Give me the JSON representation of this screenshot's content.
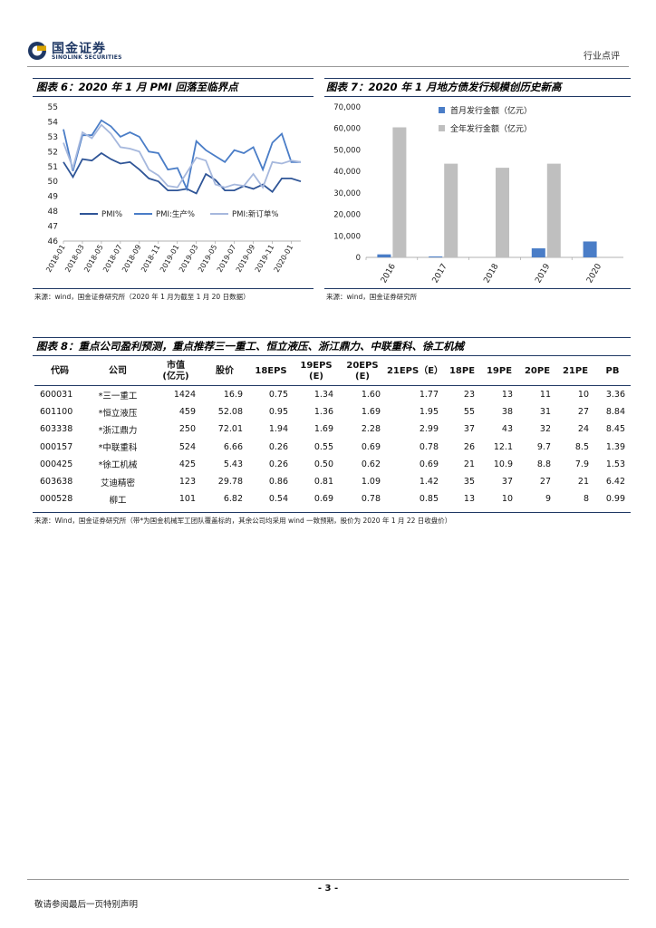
{
  "header": {
    "logo_cn": "国金证券",
    "logo_en": "SINOLINK SECURITIES",
    "section": "行业点评"
  },
  "fig6": {
    "title": "图表 6：2020 年 1 月 PMI 回落至临界点",
    "source": "来源：wind，国金证券研究所（2020 年 1 月为截至 1 月 20 日数据）"
  },
  "fig7": {
    "title": "图表 7：2020 年 1 月地方债发行规模创历史新高",
    "source": "来源：wind，国金证券研究所"
  },
  "fig8": {
    "title": "图表 8：重点公司盈利预测，重点推荐三一重工、恒立液压、浙江鼎力、中联重科、徐工机械",
    "source": "来源：Wind，国金证券研究所（带*为国金机械军工团队覆盖标的，其余公司均采用 wind 一致预期，股价为 2020 年 1 月 22 日收盘价）"
  },
  "chart_data": [
    {
      "type": "line",
      "title": "图表 6：2020 年 1 月 PMI 回落至临界点",
      "ylim": [
        46,
        55
      ],
      "yticks": [
        "55",
        "54",
        "53",
        "52",
        "51",
        "50",
        "49",
        "48",
        "47",
        "46"
      ],
      "xtick_labels": [
        "2018-01",
        "2018-03",
        "2018-05",
        "2018-07",
        "2018-09",
        "2018-11",
        "2019-01",
        "2019-03",
        "2019-05",
        "2019-07",
        "2019-09",
        "2019-11",
        "2020-01"
      ],
      "legend": "bottom",
      "series": [
        {
          "name": "PMI%",
          "color": "#2f5597",
          "values": [
            51.3,
            50.3,
            51.5,
            51.4,
            51.9,
            51.5,
            51.2,
            51.3,
            50.8,
            50.2,
            50.0,
            49.4,
            49.4,
            49.5,
            49.2,
            50.5,
            50.1,
            49.4,
            49.4,
            49.7,
            49.5,
            49.8,
            49.3,
            50.2,
            50.2,
            50.0
          ]
        },
        {
          "name": "PMI:生产%",
          "color": "#4a7dc7",
          "values": [
            53.5,
            50.7,
            53.1,
            53.1,
            54.1,
            53.7,
            53.0,
            53.3,
            53.0,
            52.0,
            51.9,
            50.8,
            50.9,
            49.5,
            52.7,
            52.1,
            51.7,
            51.3,
            52.1,
            51.9,
            52.3,
            50.8,
            52.6,
            53.2,
            51.3,
            51.3
          ]
        },
        {
          "name": "PMI:新订单%",
          "color": "#a6b8dd",
          "values": [
            52.6,
            50.9,
            53.3,
            52.9,
            53.8,
            53.2,
            52.3,
            52.2,
            52.0,
            50.8,
            50.4,
            49.7,
            49.6,
            50.6,
            51.6,
            51.4,
            49.8,
            49.6,
            49.8,
            49.7,
            50.5,
            49.6,
            51.3,
            51.2,
            51.4,
            51.3
          ]
        }
      ]
    },
    {
      "type": "bar",
      "title": "图表 7：2020 年 1 月地方债发行规模创历史新高",
      "categories": [
        "2016",
        "2017",
        "2018",
        "2019",
        "2020"
      ],
      "ylim": [
        0,
        70000
      ],
      "yticks": [
        "70,000",
        "60,000",
        "50,000",
        "40,000",
        "30,000",
        "20,000",
        "10,000",
        "0"
      ],
      "legend": "top-right",
      "series": [
        {
          "name": "首月发行金额（亿元）",
          "color": "#4a7dc7",
          "values": [
            1400,
            200,
            0,
            4200,
            7400
          ]
        },
        {
          "name": "全年发行金额（亿元）",
          "color": "#bfbfbf",
          "values": [
            60500,
            43600,
            41700,
            43600,
            null
          ]
        }
      ]
    }
  ],
  "table": {
    "headers": [
      {
        "line1": "代码",
        "line2": ""
      },
      {
        "line1": "公司",
        "line2": ""
      },
      {
        "line1": "市值",
        "line2": "(亿元)"
      },
      {
        "line1": "股价",
        "line2": ""
      },
      {
        "line1": "18EPS",
        "line2": ""
      },
      {
        "line1": "19EPS",
        "line2": "(E)"
      },
      {
        "line1": "20EPS",
        "line2": "(E)"
      },
      {
        "line1": "21EPS（E）",
        "line2": ""
      },
      {
        "line1": "18PE",
        "line2": ""
      },
      {
        "line1": "19PE",
        "line2": ""
      },
      {
        "line1": "20PE",
        "line2": ""
      },
      {
        "line1": "21PE",
        "line2": ""
      },
      {
        "line1": "PB",
        "line2": ""
      }
    ],
    "rows": [
      [
        "600031",
        "*三一重工",
        "1424",
        "16.9",
        "0.75",
        "1.34",
        "1.60",
        "1.77",
        "23",
        "13",
        "11",
        "10",
        "3.36"
      ],
      [
        "601100",
        "*恒立液压",
        "459",
        "52.08",
        "0.95",
        "1.36",
        "1.69",
        "1.95",
        "55",
        "38",
        "31",
        "27",
        "8.84"
      ],
      [
        "603338",
        "*浙江鼎力",
        "250",
        "72.01",
        "1.94",
        "1.69",
        "2.28",
        "2.99",
        "37",
        "43",
        "32",
        "24",
        "8.45"
      ],
      [
        "000157",
        "*中联重科",
        "524",
        "6.66",
        "0.26",
        "0.55",
        "0.69",
        "0.78",
        "26",
        "12.1",
        "9.7",
        "8.5",
        "1.39"
      ],
      [
        "000425",
        "*徐工机械",
        "425",
        "5.43",
        "0.26",
        "0.50",
        "0.62",
        "0.69",
        "21",
        "10.9",
        "8.8",
        "7.9",
        "1.53"
      ],
      [
        "603638",
        "艾迪精密",
        "123",
        "29.78",
        "0.86",
        "0.81",
        "1.09",
        "1.42",
        "35",
        "37",
        "27",
        "21",
        "6.42"
      ],
      [
        "000528",
        "柳工",
        "101",
        "6.82",
        "0.54",
        "0.69",
        "0.78",
        "0.85",
        "13",
        "10",
        "9",
        "8",
        "0.99"
      ]
    ]
  },
  "footer": {
    "page": "- 3 -",
    "disclaimer": "敬请参阅最后一页特别声明"
  }
}
